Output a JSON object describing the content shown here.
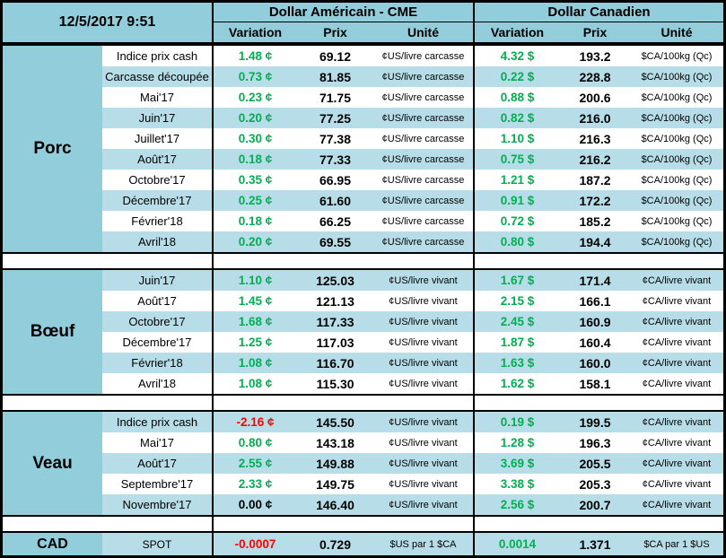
{
  "colors": {
    "teal": "#92CDDC",
    "stripe": "#B7DEE8",
    "positive": "#00B050",
    "negative": "#FF0000"
  },
  "header": {
    "timestamp": "12/5/2017 9:51",
    "usd_title": "Dollar Américain - CME",
    "cad_title": "Dollar Canadien",
    "col_variation": "Variation",
    "col_prix": "Prix",
    "col_unite": "Unité"
  },
  "sections": [
    {
      "name": "Porc",
      "first_row_shaded": false,
      "rows": [
        {
          "label": "Indice prix cash",
          "usd_var": "1.48 ¢",
          "usd_var_color": "green",
          "usd_prix": "69.12",
          "usd_unit": "¢US/livre carcasse",
          "cad_var": "4.32 $",
          "cad_var_color": "green",
          "cad_prix": "193.2",
          "cad_unit": "$CA/100kg (Qc)"
        },
        {
          "label": "Carcasse découpée",
          "usd_var": "0.73 ¢",
          "usd_var_color": "green",
          "usd_prix": "81.85",
          "usd_unit": "¢US/livre carcasse",
          "cad_var": "0.22 $",
          "cad_var_color": "green",
          "cad_prix": "228.8",
          "cad_unit": "$CA/100kg (Qc)"
        },
        {
          "label": "Mai'17",
          "usd_var": "0.23 ¢",
          "usd_var_color": "green",
          "usd_prix": "71.75",
          "usd_unit": "¢US/livre carcasse",
          "cad_var": "0.88 $",
          "cad_var_color": "green",
          "cad_prix": "200.6",
          "cad_unit": "$CA/100kg (Qc)"
        },
        {
          "label": "Juin'17",
          "usd_var": "0.20 ¢",
          "usd_var_color": "green",
          "usd_prix": "77.25",
          "usd_unit": "¢US/livre carcasse",
          "cad_var": "0.82 $",
          "cad_var_color": "green",
          "cad_prix": "216.0",
          "cad_unit": "$CA/100kg (Qc)"
        },
        {
          "label": "Juillet'17",
          "usd_var": "0.30 ¢",
          "usd_var_color": "green",
          "usd_prix": "77.38",
          "usd_unit": "¢US/livre carcasse",
          "cad_var": "1.10 $",
          "cad_var_color": "green",
          "cad_prix": "216.3",
          "cad_unit": "$CA/100kg (Qc)"
        },
        {
          "label": "Août'17",
          "usd_var": "0.18 ¢",
          "usd_var_color": "green",
          "usd_prix": "77.33",
          "usd_unit": "¢US/livre carcasse",
          "cad_var": "0.75 $",
          "cad_var_color": "green",
          "cad_prix": "216.2",
          "cad_unit": "$CA/100kg (Qc)"
        },
        {
          "label": "Octobre'17",
          "usd_var": "0.35 ¢",
          "usd_var_color": "green",
          "usd_prix": "66.95",
          "usd_unit": "¢US/livre carcasse",
          "cad_var": "1.21 $",
          "cad_var_color": "green",
          "cad_prix": "187.2",
          "cad_unit": "$CA/100kg (Qc)"
        },
        {
          "label": "Décembre'17",
          "usd_var": "0.25 ¢",
          "usd_var_color": "green",
          "usd_prix": "61.60",
          "usd_unit": "¢US/livre carcasse",
          "cad_var": "0.91 $",
          "cad_var_color": "green",
          "cad_prix": "172.2",
          "cad_unit": "$CA/100kg (Qc)"
        },
        {
          "label": "Février'18",
          "usd_var": "0.18 ¢",
          "usd_var_color": "green",
          "usd_prix": "66.25",
          "usd_unit": "¢US/livre carcasse",
          "cad_var": "0.72 $",
          "cad_var_color": "green",
          "cad_prix": "185.2",
          "cad_unit": "$CA/100kg (Qc)"
        },
        {
          "label": "Avril'18",
          "usd_var": "0.20 ¢",
          "usd_var_color": "green",
          "usd_prix": "69.55",
          "usd_unit": "¢US/livre carcasse",
          "cad_var": "0.80 $",
          "cad_var_color": "green",
          "cad_prix": "194.4",
          "cad_unit": "$CA/100kg (Qc)"
        }
      ]
    },
    {
      "name": "Bœuf",
      "first_row_shaded": true,
      "rows": [
        {
          "label": "Juin'17",
          "usd_var": "1.10 ¢",
          "usd_var_color": "green",
          "usd_prix": "125.03",
          "usd_unit": "¢US/livre vivant",
          "cad_var": "1.67 $",
          "cad_var_color": "green",
          "cad_prix": "171.4",
          "cad_unit": "¢CA/livre vivant"
        },
        {
          "label": "Août'17",
          "usd_var": "1.45 ¢",
          "usd_var_color": "green",
          "usd_prix": "121.13",
          "usd_unit": "¢US/livre vivant",
          "cad_var": "2.15 $",
          "cad_var_color": "green",
          "cad_prix": "166.1",
          "cad_unit": "¢CA/livre vivant"
        },
        {
          "label": "Octobre'17",
          "usd_var": "1.68 ¢",
          "usd_var_color": "green",
          "usd_prix": "117.33",
          "usd_unit": "¢US/livre vivant",
          "cad_var": "2.45 $",
          "cad_var_color": "green",
          "cad_prix": "160.9",
          "cad_unit": "¢CA/livre vivant"
        },
        {
          "label": "Décembre'17",
          "usd_var": "1.25 ¢",
          "usd_var_color": "green",
          "usd_prix": "117.03",
          "usd_unit": "¢US/livre vivant",
          "cad_var": "1.87 $",
          "cad_var_color": "green",
          "cad_prix": "160.4",
          "cad_unit": "¢CA/livre vivant"
        },
        {
          "label": "Février'18",
          "usd_var": "1.08 ¢",
          "usd_var_color": "green",
          "usd_prix": "116.70",
          "usd_unit": "¢US/livre vivant",
          "cad_var": "1.63 $",
          "cad_var_color": "green",
          "cad_prix": "160.0",
          "cad_unit": "¢CA/livre vivant"
        },
        {
          "label": "Avril'18",
          "usd_var": "1.08 ¢",
          "usd_var_color": "green",
          "usd_prix": "115.30",
          "usd_unit": "¢US/livre vivant",
          "cad_var": "1.62 $",
          "cad_var_color": "green",
          "cad_prix": "158.1",
          "cad_unit": "¢CA/livre vivant"
        }
      ]
    },
    {
      "name": "Veau",
      "first_row_shaded": true,
      "rows": [
        {
          "label": "Indice prix cash",
          "usd_var": "-2.16 ¢",
          "usd_var_color": "red",
          "usd_prix": "145.50",
          "usd_unit": "¢US/livre vivant",
          "cad_var": "0.19 $",
          "cad_var_color": "green",
          "cad_prix": "199.5",
          "cad_unit": "¢CA/livre vivant"
        },
        {
          "label": "Mai'17",
          "usd_var": "0.80 ¢",
          "usd_var_color": "green",
          "usd_prix": "143.18",
          "usd_unit": "¢US/livre vivant",
          "cad_var": "1.28 $",
          "cad_var_color": "green",
          "cad_prix": "196.3",
          "cad_unit": "¢CA/livre vivant"
        },
        {
          "label": "Août'17",
          "usd_var": "2.55 ¢",
          "usd_var_color": "green",
          "usd_prix": "149.88",
          "usd_unit": "¢US/livre vivant",
          "cad_var": "3.69 $",
          "cad_var_color": "green",
          "cad_prix": "205.5",
          "cad_unit": "¢CA/livre vivant"
        },
        {
          "label": "Septembre'17",
          "usd_var": "2.33 ¢",
          "usd_var_color": "green",
          "usd_prix": "149.75",
          "usd_unit": "¢US/livre vivant",
          "cad_var": "3.38 $",
          "cad_var_color": "green",
          "cad_prix": "205.3",
          "cad_unit": "¢CA/livre vivant"
        },
        {
          "label": "Novembre'17",
          "usd_var": "0.00 ¢",
          "usd_var_color": "black",
          "usd_prix": "146.40",
          "usd_unit": "¢US/livre vivant",
          "cad_var": "2.56 $",
          "cad_var_color": "green",
          "cad_prix": "200.7",
          "cad_unit": "¢CA/livre vivant"
        }
      ]
    }
  ],
  "spot": {
    "name": "CAD",
    "label": "SPOT",
    "usd_var": "-0.0007",
    "usd_var_color": "red",
    "usd_prix": "0.729",
    "usd_unit": "$US par 1 $CA",
    "cad_var": "0.0014",
    "cad_var_color": "green",
    "cad_prix": "1.371",
    "cad_unit": "$CA par 1 $US"
  }
}
